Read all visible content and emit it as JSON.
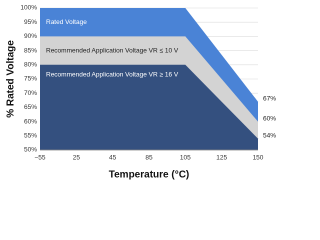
{
  "chart_data": {
    "type": "area",
    "x_label": "Temperature (°C)",
    "y_label": "% Rated Voltage",
    "categories": [
      "−55",
      "25",
      "45",
      "85",
      "105",
      "125",
      "150"
    ],
    "series": [
      {
        "name": "Rated Voltage",
        "color": "#4a83d6",
        "text_color": "#ffffff",
        "values": [
          100,
          100,
          100,
          100,
          100,
          83.5,
          67
        ],
        "value_labels": [
          null,
          null,
          null,
          null,
          null,
          null,
          "67%"
        ]
      },
      {
        "name": "Recommended Application Voltage VR ≤ 10 V",
        "color": "#d3d3d3",
        "text_color": "#222222",
        "values": [
          90,
          90,
          90,
          90,
          90,
          75,
          60
        ],
        "value_labels": [
          null,
          null,
          null,
          null,
          null,
          null,
          "60%"
        ]
      },
      {
        "name": "Recommended Application Voltage VR ≥ 16 V",
        "color": "#34507f",
        "text_color": "#ffffff",
        "values": [
          80,
          80,
          80,
          80,
          80,
          67,
          54
        ],
        "value_labels": [
          null,
          null,
          null,
          null,
          null,
          null,
          "54%"
        ]
      }
    ],
    "ylim": [
      50,
      100
    ],
    "yticks": [
      {
        "value": 50,
        "label": "50%"
      },
      {
        "value": 55,
        "label": "55%"
      },
      {
        "value": 60,
        "label": "60%"
      },
      {
        "value": 65,
        "label": "65%"
      },
      {
        "value": 70,
        "label": "70%"
      },
      {
        "value": 75,
        "label": "75%"
      },
      {
        "value": 80,
        "label": "80%"
      },
      {
        "value": 85,
        "label": "85%"
      },
      {
        "value": 90,
        "label": "90%"
      },
      {
        "value": 95,
        "label": "95%"
      },
      {
        "value": 100,
        "label": "100%"
      }
    ],
    "grid": true
  }
}
